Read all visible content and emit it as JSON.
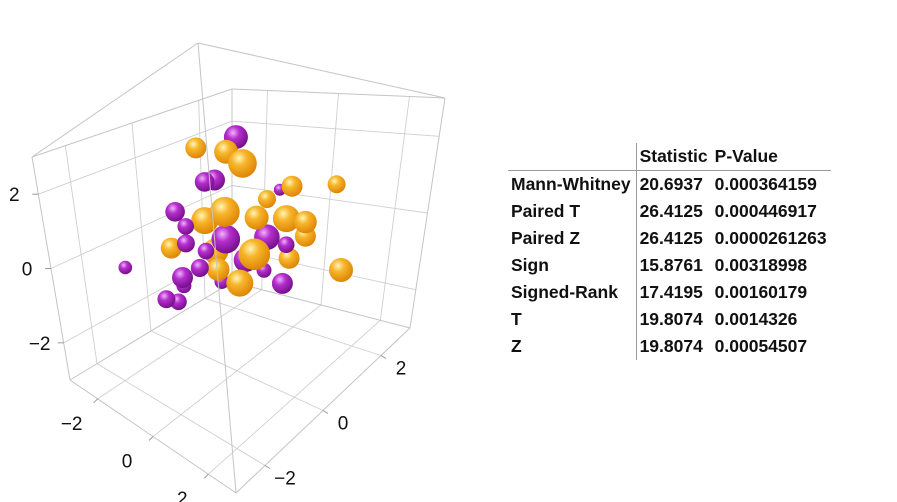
{
  "chart_data": [
    {
      "type": "scatter3d",
      "x_ticks": [
        "−2",
        "0",
        "2"
      ],
      "y_ticks": [
        "−2",
        "0",
        "2"
      ],
      "z_ticks": [
        "−2",
        "0",
        "2"
      ],
      "xlim": [
        -3,
        3
      ],
      "ylim": [
        -3,
        3
      ],
      "zlim": [
        -3,
        3
      ],
      "series": [
        {
          "color": "#f5a211",
          "points": [
            [
              -0.6,
              -0.4,
              2.0,
              0.7
            ],
            [
              0.2,
              0.2,
              1.5,
              0.95
            ],
            [
              -1.1,
              0.2,
              0.2,
              0.9
            ],
            [
              -0.1,
              -0.1,
              0.5,
              1.0
            ],
            [
              0.5,
              0.3,
              0.3,
              0.8
            ],
            [
              0.6,
              1.1,
              0.1,
              0.9
            ],
            [
              1.0,
              1.3,
              0.0,
              0.75
            ],
            [
              1.4,
              1.8,
              0.8,
              0.6
            ],
            [
              -1.0,
              0.4,
              -0.6,
              0.85
            ],
            [
              0.4,
              0.3,
              -0.5,
              1.05
            ],
            [
              0.8,
              1.5,
              -0.4,
              0.7
            ],
            [
              2.3,
              1.2,
              -0.9,
              0.8
            ],
            [
              -0.4,
              -0.1,
              -0.8,
              0.75
            ],
            [
              -1.3,
              -0.7,
              -0.2,
              0.7
            ],
            [
              0.1,
              0.1,
              -1.1,
              0.9
            ],
            [
              0.7,
              1.1,
              -0.8,
              0.7
            ],
            [
              0.3,
              0.8,
              0.6,
              0.6
            ],
            [
              -0.2,
              0.1,
              1.8,
              0.8
            ],
            [
              1.1,
              0.8,
              0.9,
              0.7
            ]
          ]
        },
        {
          "color": "#b125c7",
          "points": [
            [
              -0.1,
              0.3,
              2.1,
              0.8
            ],
            [
              -0.6,
              -0.2,
              1.2,
              0.65
            ],
            [
              -0.5,
              0.0,
              1.2,
              0.7
            ],
            [
              -1.3,
              -0.5,
              0.6,
              0.65
            ],
            [
              0.6,
              0.9,
              0.8,
              0.4
            ],
            [
              -1.2,
              -0.3,
              0.2,
              0.55
            ],
            [
              -0.1,
              -0.1,
              -0.1,
              0.95
            ],
            [
              0.5,
              0.6,
              -0.2,
              0.85
            ],
            [
              -0.9,
              -0.6,
              -0.1,
              0.6
            ],
            [
              -2.4,
              -1.2,
              -0.6,
              0.45
            ],
            [
              -1.0,
              0.1,
              -0.5,
              0.55
            ],
            [
              -0.7,
              -0.4,
              -0.7,
              0.6
            ],
            [
              -1.1,
              -0.6,
              -0.9,
              0.7
            ],
            [
              0.0,
              0.4,
              -0.7,
              0.8
            ],
            [
              0.6,
              1.1,
              -0.5,
              0.55
            ],
            [
              -1.5,
              -0.2,
              -1.3,
              0.5
            ],
            [
              -0.4,
              0.0,
              -1.1,
              0.5
            ],
            [
              0.9,
              0.7,
              -1.2,
              0.7
            ],
            [
              -1.5,
              -0.8,
              -1.4,
              0.6
            ],
            [
              -1.3,
              -0.6,
              -1.5,
              0.55
            ],
            [
              0.5,
              0.5,
              -0.9,
              0.5
            ]
          ]
        }
      ]
    },
    {
      "type": "table",
      "columns": [
        "Statistic",
        "P-Value"
      ],
      "rows": [
        {
          "name": "Mann-Whitney",
          "statistic": "20.6937",
          "p_value": "0.000364159"
        },
        {
          "name": "Paired T",
          "statistic": "26.4125",
          "p_value": "0.000446917"
        },
        {
          "name": "Paired Z",
          "statistic": "26.4125",
          "p_value": "0.0000261263"
        },
        {
          "name": "Sign",
          "statistic": "15.8761",
          "p_value": "0.00318998"
        },
        {
          "name": "Signed-Rank",
          "statistic": "17.4195",
          "p_value": "0.00160179"
        },
        {
          "name": "T",
          "statistic": "19.8074",
          "p_value": "0.0014326"
        },
        {
          "name": "Z",
          "statistic": "19.8074",
          "p_value": "0.00054507"
        }
      ]
    }
  ]
}
